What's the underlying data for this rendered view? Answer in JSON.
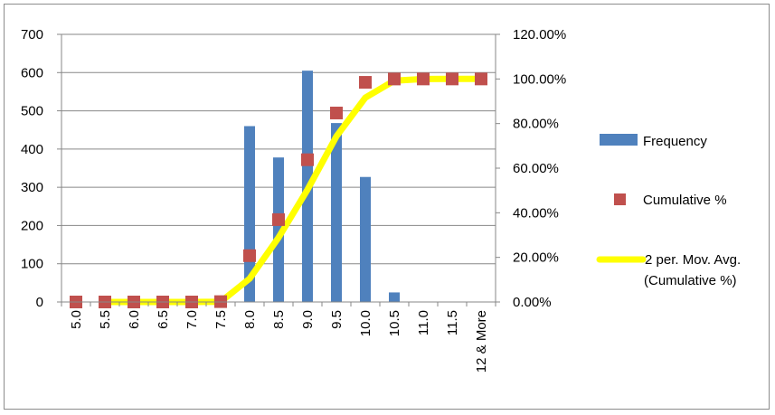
{
  "chart_data": {
    "type": "bar",
    "categories": [
      "5.0",
      "5.5",
      "6.0",
      "6.5",
      "7.0",
      "7.5",
      "8.0",
      "8.5",
      "9.0",
      "9.5",
      "10.0",
      "10.5",
      "11.0",
      "11.5",
      "12 & More"
    ],
    "series": [
      {
        "name": "Frequency",
        "type": "bar",
        "axis": "left",
        "color": "#4f81bd",
        "values": [
          0,
          0,
          0,
          0,
          0,
          0,
          460,
          378,
          605,
          468,
          327,
          25,
          0,
          0,
          0
        ]
      },
      {
        "name": "Cumulative %",
        "type": "scatter",
        "axis": "right",
        "color": "#c0504d",
        "values": [
          0,
          0,
          0,
          0,
          0,
          0.0016,
          0.2077,
          0.3693,
          0.6378,
          0.8474,
          0.9849,
          0.9998,
          1,
          1,
          1
        ]
      },
      {
        "name": "2 per. Mov. Avg.",
        "name_line2": "(Cumulative %)",
        "type": "line",
        "axis": "right",
        "color": "#ffff00",
        "values": [
          null,
          0,
          0,
          0,
          0,
          0.0008,
          0.1047,
          0.2885,
          0.5036,
          0.7426,
          0.9162,
          0.9924,
          0.9999,
          1,
          1
        ]
      }
    ],
    "ylim": [
      0,
      700
    ],
    "yticks": [
      "0",
      "100",
      "200",
      "300",
      "400",
      "500",
      "600",
      "700"
    ],
    "y2lim": [
      0,
      1.2
    ],
    "y2ticks": [
      "0.00%",
      "20.00%",
      "40.00%",
      "60.00%",
      "80.00%",
      "100.00%",
      "120.00%"
    ],
    "title": "",
    "xlabel": "",
    "ylabel": "",
    "grid": "horizontal",
    "legend_position": "right"
  }
}
